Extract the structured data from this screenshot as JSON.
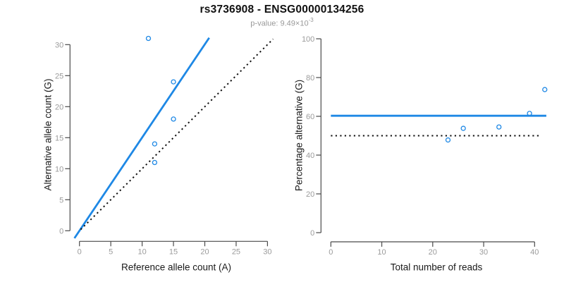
{
  "header": {
    "title": "rs3736908 - ENSG00000134256",
    "pvalue_label": "p-value: 9.49×10",
    "pvalue_exponent": "-3"
  },
  "palette": {
    "line_blue": "#1E88E5",
    "dotted_black": "#111111",
    "axis": "#4a4a4a",
    "tick_labels": "#9b9b9b",
    "title_color": "#111111",
    "subtitle_color": "#999999"
  },
  "chart_data": [
    {
      "type": "scatter",
      "name": "allele-count-panel",
      "xlabel": "Reference allele count (A)",
      "ylabel": "Alternative allele count (G)",
      "xlim": [
        0,
        31
      ],
      "ylim": [
        0,
        31
      ],
      "xticks": [
        0,
        5,
        10,
        15,
        20,
        25,
        30
      ],
      "yticks": [
        0,
        5,
        10,
        15,
        20,
        25,
        30
      ],
      "grid": false,
      "legend": "none",
      "marker": "open-circle",
      "marker_color": "#1E88E5",
      "points": [
        [
          11,
          31
        ],
        [
          15,
          24
        ],
        [
          15,
          18
        ],
        [
          12,
          14
        ],
        [
          12,
          11
        ]
      ],
      "lines": [
        {
          "name": "fit-line",
          "color": "#1E88E5",
          "style": "solid",
          "x": [
            -0.8,
            20.7
          ],
          "y": [
            -1.2,
            31.1
          ]
        },
        {
          "name": "identity-line",
          "color": "#111111",
          "style": "dotted",
          "x": [
            0.2,
            30.9
          ],
          "y": [
            0.2,
            30.9
          ]
        }
      ]
    },
    {
      "type": "scatter",
      "name": "percentage-panel",
      "xlabel": "Total number of reads",
      "ylabel": "Percentage alternative (G)",
      "xlim": [
        0,
        42
      ],
      "ylim": [
        0,
        100
      ],
      "xticks": [
        0,
        10,
        20,
        30,
        40
      ],
      "yticks": [
        0,
        20,
        40,
        60,
        80,
        100
      ],
      "grid": false,
      "legend": "none",
      "marker": "open-circle",
      "marker_color": "#1E88E5",
      "points": [
        [
          23,
          47.8
        ],
        [
          26,
          53.8
        ],
        [
          33,
          54.5
        ],
        [
          39,
          61.5
        ],
        [
          42,
          73.8
        ]
      ],
      "lines": [
        {
          "name": "mean-line",
          "color": "#1E88E5",
          "style": "solid",
          "x": [
            0,
            42.3
          ],
          "y": [
            60.3,
            60.3
          ]
        },
        {
          "name": "null-line",
          "color": "#111111",
          "style": "dotted",
          "x": [
            0,
            41.3
          ],
          "y": [
            50,
            50
          ]
        }
      ]
    }
  ]
}
